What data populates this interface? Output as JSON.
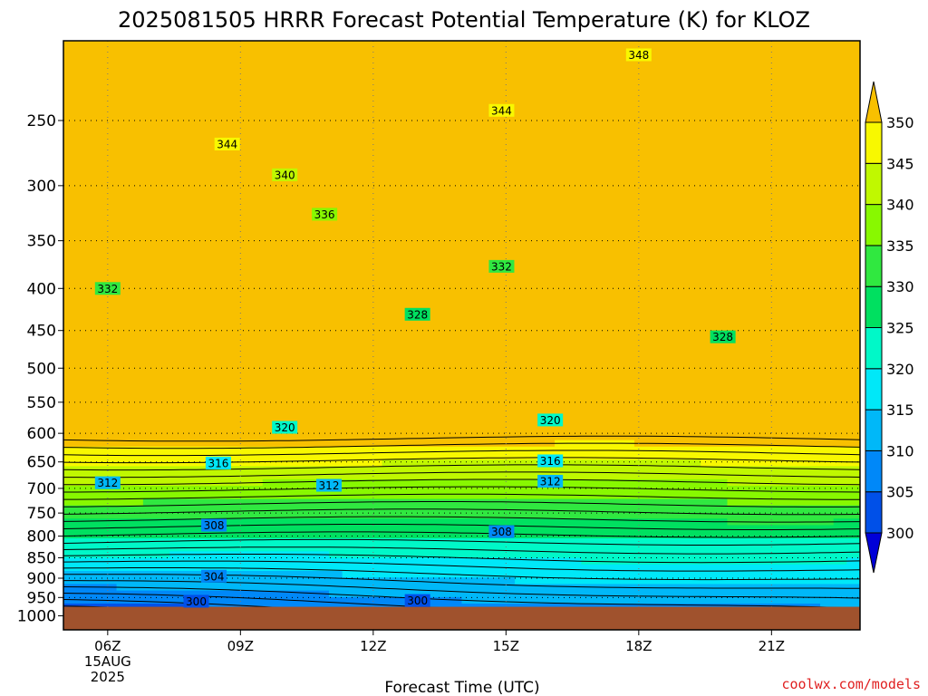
{
  "chart_data": {
    "type": "heatmap",
    "title": "2025081505 HRRR Forecast Potential Temperature (K) for KLOZ",
    "xlabel": "Forecast Time (UTC)",
    "ylabel": "",
    "credit": "coolwx.com/models",
    "x_ticks": [
      {
        "label": "06Z",
        "hour": 6
      },
      {
        "label": "09Z",
        "hour": 9
      },
      {
        "label": "12Z",
        "hour": 12
      },
      {
        "label": "15Z",
        "hour": 15
      },
      {
        "label": "18Z",
        "hour": 18
      },
      {
        "label": "21Z",
        "hour": 21
      }
    ],
    "date_label_day": "15AUG",
    "date_label_year": "2025",
    "xlim_hours": [
      5,
      23
    ],
    "y_scale": "log-pressure (hPa, inverted)",
    "ylim_hPa": [
      1040,
      200
    ],
    "y_ticks": [
      250,
      300,
      350,
      400,
      450,
      500,
      550,
      600,
      650,
      700,
      750,
      800,
      850,
      900,
      950,
      1000
    ],
    "ground_pressure_hPa": 975,
    "color_levels": [
      300,
      305,
      310,
      315,
      320,
      325,
      330,
      335,
      340,
      345,
      350
    ],
    "color_fills": [
      "#0000d8",
      "#0050e8",
      "#0088f8",
      "#00b8f8",
      "#00e8f8",
      "#00f8c8",
      "#00e060",
      "#30e840",
      "#88f800",
      "#c0f800",
      "#f8f800",
      "#f8c000"
    ],
    "ground_color": "#a0522d",
    "contour_interval_K": 2,
    "contour_labels": [
      {
        "value": "348",
        "hour": 18.0,
        "hPa": 208
      },
      {
        "value": "344",
        "hour": 8.7,
        "hPa": 267
      },
      {
        "value": "344",
        "hour": 14.9,
        "hPa": 243
      },
      {
        "value": "340",
        "hour": 10.0,
        "hPa": 291
      },
      {
        "value": "336",
        "hour": 10.9,
        "hPa": 325
      },
      {
        "value": "332",
        "hour": 14.9,
        "hPa": 376
      },
      {
        "value": "332",
        "hour": 6.0,
        "hPa": 400
      },
      {
        "value": "328",
        "hour": 13.0,
        "hPa": 430
      },
      {
        "value": "328",
        "hour": 19.9,
        "hPa": 458
      },
      {
        "value": "320",
        "hour": 10.0,
        "hPa": 590
      },
      {
        "value": "320",
        "hour": 16.0,
        "hPa": 578
      },
      {
        "value": "316",
        "hour": 8.5,
        "hPa": 652
      },
      {
        "value": "316",
        "hour": 16.0,
        "hPa": 648
      },
      {
        "value": "312",
        "hour": 6.0,
        "hPa": 689
      },
      {
        "value": "312",
        "hour": 11.0,
        "hPa": 694
      },
      {
        "value": "312",
        "hour": 16.0,
        "hPa": 686
      },
      {
        "value": "308",
        "hour": 8.4,
        "hPa": 776
      },
      {
        "value": "308",
        "hour": 14.9,
        "hPa": 790
      },
      {
        "value": "304",
        "hour": 8.4,
        "hPa": 895
      },
      {
        "value": "300",
        "hour": 8.0,
        "hPa": 960
      },
      {
        "value": "300",
        "hour": 13.0,
        "hPa": 958
      }
    ],
    "colorbar_labels": [
      "300",
      "305",
      "310",
      "315",
      "320",
      "325",
      "330",
      "335",
      "340",
      "345",
      "350"
    ]
  }
}
